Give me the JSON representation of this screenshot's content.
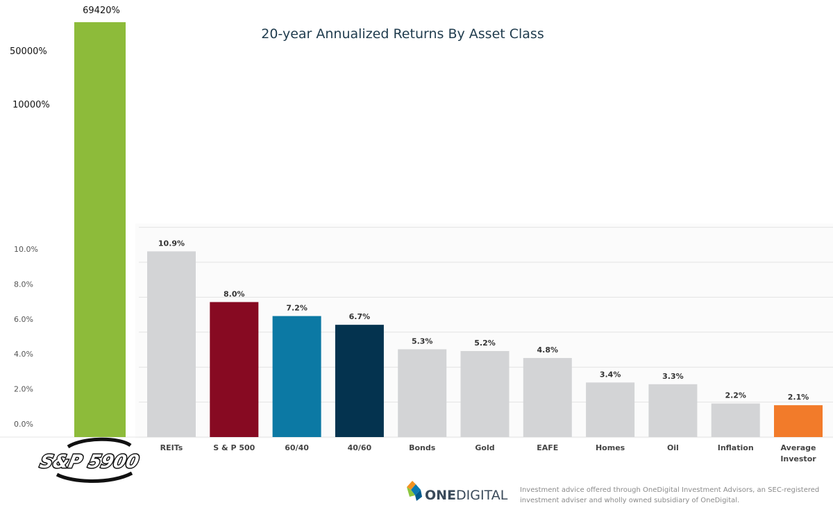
{
  "chart_data": [
    {
      "type": "bar",
      "title": "",
      "categories": [
        "S&P 5900"
      ],
      "values": [
        69420
      ],
      "value_labels": [
        "69420%"
      ],
      "y_tick_labels": [
        "50000%",
        "10000%"
      ],
      "colors": {
        "bar": "#8dbb3a"
      },
      "logo_text": "S&P 5900"
    },
    {
      "type": "bar",
      "title": "20-year Annualized Returns By Asset Class",
      "categories": [
        "REITs",
        "S & P 500",
        "60/40",
        "40/60",
        "Bonds",
        "Gold",
        "EAFE",
        "Homes",
        "Oil",
        "Inflation",
        "Average Investor"
      ],
      "values": [
        10.9,
        8.0,
        7.2,
        6.7,
        5.3,
        5.2,
        4.8,
        3.4,
        3.3,
        2.2,
        2.1
      ],
      "value_labels": [
        "10.9%",
        "8.0%",
        "7.2%",
        "6.7%",
        "5.3%",
        "5.2%",
        "4.8%",
        "3.4%",
        "3.3%",
        "2.2%",
        "2.1%"
      ],
      "y_tick_labels": [
        "0.0%",
        "2.0%",
        "4.0%",
        "6.0%",
        "8.0%",
        "10.0%"
      ],
      "ylim": [
        0,
        12
      ],
      "grid": true,
      "colors": [
        "#d3d4d6",
        "#870a22",
        "#0c79a4",
        "#04334f",
        "#d3d4d6",
        "#d3d4d6",
        "#d3d4d6",
        "#d3d4d6",
        "#d3d4d6",
        "#d3d4d6",
        "#f27b2a"
      ]
    }
  ],
  "footer": {
    "brand_one": "ONE",
    "brand_digital": "DIGITAL",
    "disclaimer_line1": "Investment advice offered through OneDigital Investment Advisors, an SEC-registered",
    "disclaimer_line2": "investment adviser and wholly owned subsidiary of OneDigital.",
    "logo_colors": [
      "#f39321",
      "#0b7bb2",
      "#8cc63f",
      "#005b8e"
    ]
  }
}
